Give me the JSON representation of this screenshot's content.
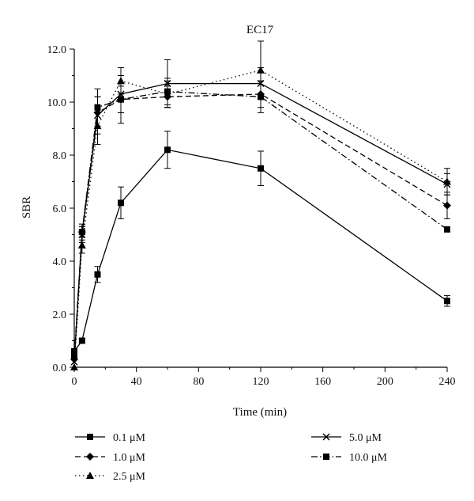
{
  "chart_data": {
    "type": "line",
    "title": "EC17",
    "xlabel": "Time (min)",
    "ylabel": "SBR",
    "xlim": [
      0,
      240
    ],
    "ylim": [
      0,
      12
    ],
    "x_ticks": [
      "0",
      "40",
      "80",
      "120",
      "160",
      "200",
      "240"
    ],
    "x_tick_values": [
      0,
      40,
      80,
      120,
      160,
      200,
      240
    ],
    "y_ticks": [
      "0.0",
      "2.0",
      "4.0",
      "6.0",
      "8.0",
      "10.0",
      "12.0"
    ],
    "y_tick_values": [
      0,
      2,
      4,
      6,
      8,
      10,
      12
    ],
    "grid": false,
    "legend_position": "bottom",
    "x": [
      0,
      5,
      15,
      30,
      60,
      120,
      240
    ],
    "series": [
      {
        "name": "0.1 μM",
        "marker": "square",
        "dash": "solid",
        "values": [
          0.6,
          1.0,
          3.5,
          6.2,
          8.2,
          7.5,
          2.5
        ],
        "errors": [
          0.0,
          0.0,
          0.3,
          0.6,
          0.7,
          0.65,
          0.2
        ]
      },
      {
        "name": "1.0 μM",
        "marker": "diamond",
        "dash": "dashed",
        "values": [
          0.3,
          5.1,
          9.6,
          10.1,
          10.2,
          10.3,
          6.1
        ],
        "errors": [
          0.0,
          0.2,
          0.6,
          0.5,
          0.4,
          0.5,
          0.5
        ]
      },
      {
        "name": "2.5 μM",
        "marker": "triangle",
        "dash": "dotted",
        "values": [
          0.0,
          4.6,
          9.1,
          10.8,
          10.3,
          11.2,
          7.0
        ],
        "errors": [
          0.0,
          0.3,
          0.7,
          0.5,
          0.5,
          1.1,
          0.5
        ]
      },
      {
        "name": "5.0 μM",
        "marker": "x",
        "dash": "solid",
        "values": [
          0.2,
          5.0,
          9.5,
          10.3,
          10.7,
          10.7,
          6.9
        ],
        "errors": [
          0.0,
          0.3,
          0.7,
          0.7,
          0.9,
          0.6,
          0.4
        ]
      },
      {
        "name": "10.0 μM",
        "marker": "square",
        "dash": "dashdot",
        "values": [
          0.4,
          5.1,
          9.8,
          10.1,
          10.4,
          10.2,
          5.2
        ],
        "errors": [
          0.0,
          0.3,
          0.7,
          0.9,
          0.5,
          0.6,
          0.0
        ]
      }
    ]
  }
}
